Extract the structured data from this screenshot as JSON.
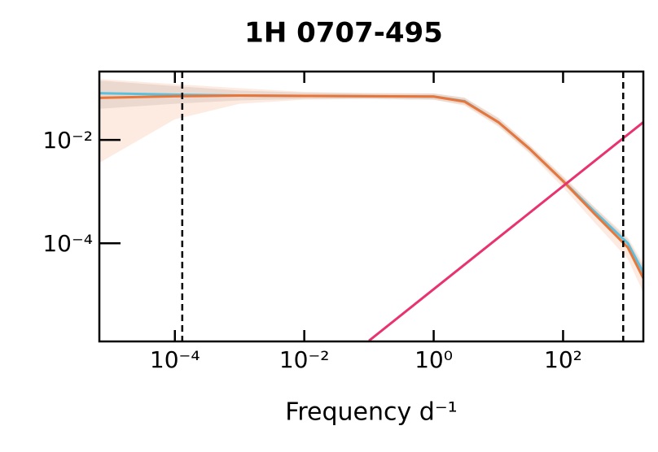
{
  "chart_data": {
    "type": "line",
    "title": "1H 0707-495",
    "xlabel": "Frequency d⁻¹",
    "log_x": true,
    "log_y": true,
    "xlim": [
      6.8e-06,
      1740
    ],
    "ylim": [
      1.26e-06,
      0.21
    ],
    "xticks": [
      {
        "value": 0.0001,
        "label": "10⁻⁴"
      },
      {
        "value": 0.01,
        "label": "10⁻²"
      },
      {
        "value": 1,
        "label": "10⁰"
      },
      {
        "value": 100,
        "label": "10²"
      }
    ],
    "yticks": [
      {
        "value": 0.01,
        "label": "10⁻²"
      },
      {
        "value": 0.0001,
        "label": "10⁻⁴"
      }
    ],
    "vlines": [
      0.00013,
      850
    ],
    "series": [
      {
        "color": "#5bc0de",
        "band_color": "#b0b0b0",
        "x": [
          6.8e-06,
          0.0001,
          0.001,
          0.01,
          0.1,
          1,
          3,
          10,
          30,
          100,
          300,
          1000,
          1740
        ],
        "values": [
          0.08,
          0.075,
          0.072,
          0.071,
          0.07,
          0.069,
          0.056,
          0.022,
          0.0068,
          0.0016,
          0.00042,
          0.0001,
          2.7e-05
        ],
        "lower": [
          0.04,
          0.05,
          0.058,
          0.062,
          0.062,
          0.06,
          0.048,
          0.019,
          0.0058,
          0.0014,
          0.00036,
          8.5e-05,
          2e-05
        ],
        "upper": [
          0.14,
          0.11,
          0.09,
          0.082,
          0.08,
          0.079,
          0.065,
          0.026,
          0.0079,
          0.0019,
          0.0005,
          0.00012,
          3.5e-05
        ]
      },
      {
        "color": "#e8763a",
        "band_color": "#f9c4a8",
        "x": [
          6.8e-06,
          0.0001,
          0.001,
          0.01,
          0.1,
          1,
          3,
          10,
          30,
          100,
          300,
          1000,
          1740
        ],
        "values": [
          0.065,
          0.07,
          0.072,
          0.071,
          0.07,
          0.069,
          0.055,
          0.022,
          0.0068,
          0.0016,
          0.00038,
          8.3e-05,
          2.1e-05
        ],
        "lower": [
          0.0036,
          0.025,
          0.05,
          0.06,
          0.062,
          0.06,
          0.046,
          0.018,
          0.0055,
          0.0012,
          0.00026,
          5e-05,
          1.1e-05
        ],
        "upper": [
          0.15,
          0.12,
          0.1,
          0.085,
          0.08,
          0.079,
          0.066,
          0.027,
          0.0082,
          0.002,
          0.00052,
          0.00013,
          4e-05
        ]
      },
      {
        "color": "#e8336f",
        "x": [
          0.1,
          1740
        ],
        "values": [
          1.3e-06,
          0.022
        ]
      }
    ]
  }
}
